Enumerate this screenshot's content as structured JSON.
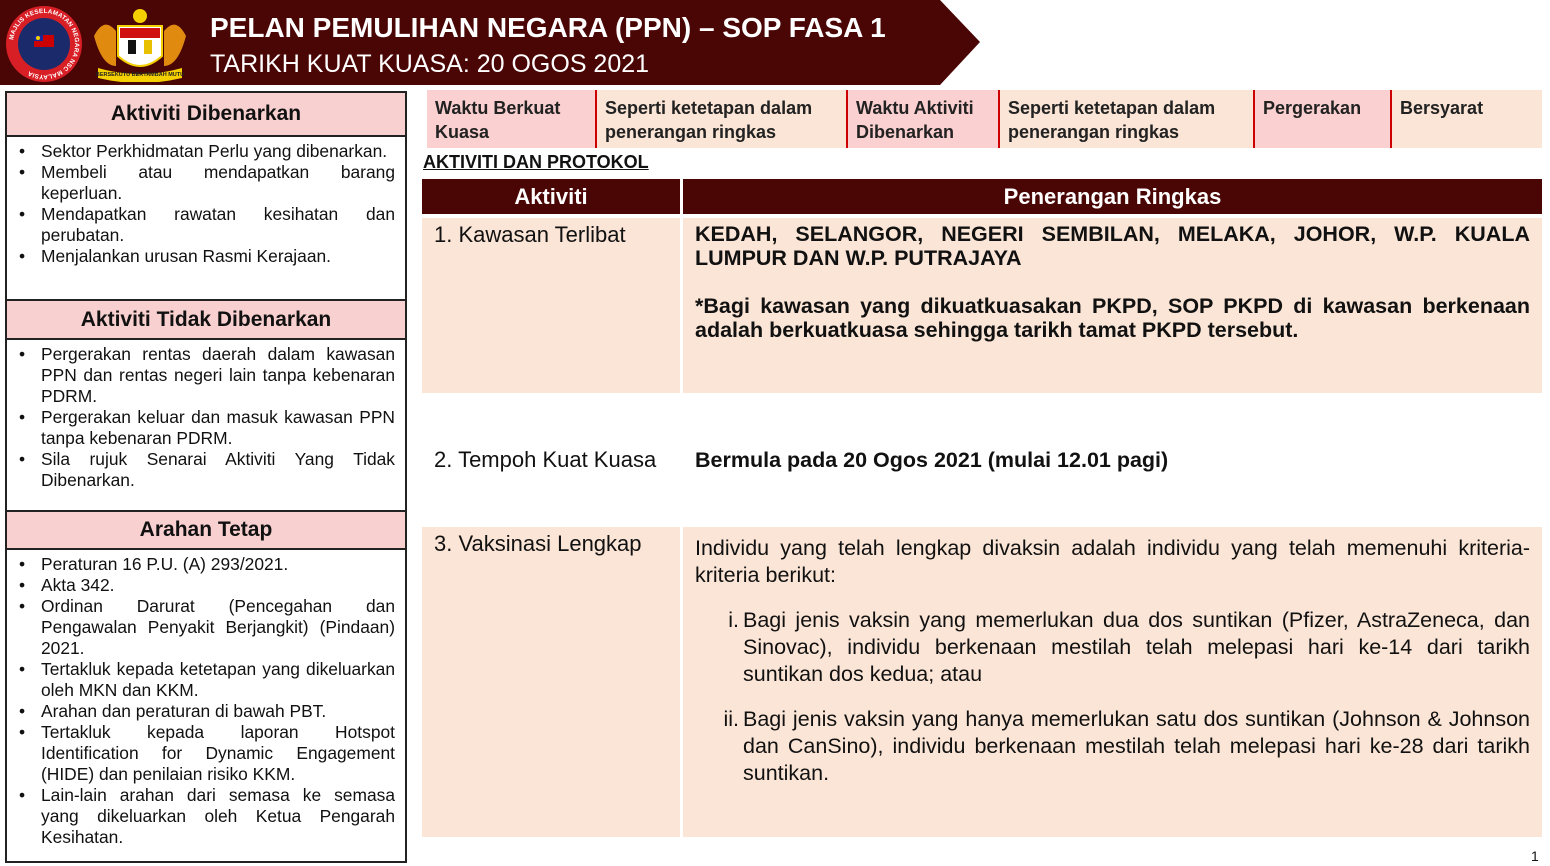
{
  "header": {
    "title": "PELAN PEMULIHAN NEGARA (PPN) – SOP FASA 1",
    "subtitle": "TARIKH KUAT KUASA: 20 OGOS 2021",
    "logo1_text": "MAJLIS KESELAMATAN NEGARA NSC MALAYSIA",
    "logo2_text": "BERSEKUTU BERTAMBAH MUTU"
  },
  "left": {
    "sections": [
      {
        "title": "Aktiviti Dibenarkan",
        "items": [
          "Sektor Perkhidmatan Perlu yang dibenarkan.",
          "Membeli atau mendapatkan barang keperluan.",
          "Mendapatkan rawatan kesihatan dan perubatan.",
          "Menjalankan urusan Rasmi Kerajaan."
        ]
      },
      {
        "title": "Aktiviti Tidak Dibenarkan",
        "items": [
          "Pergerakan rentas daerah dalam kawasan PPN dan rentas negeri lain tanpa kebenaran PDRM.",
          "Pergerakan keluar dan masuk kawasan PPN tanpa kebenaran PDRM.",
          "Sila rujuk Senarai Aktiviti Yang Tidak Dibenarkan."
        ]
      },
      {
        "title": "Arahan Tetap",
        "items": [
          "Peraturan 16 P.U. (A) 293/2021.",
          "Akta 342.",
          "Ordinan Darurat (Pencegahan dan Pengawalan Penyakit Berjangkit) (Pindaan) 2021.",
          "Tertakluk kepada ketetapan yang dikeluarkan oleh MKN dan KKM.",
          "Arahan dan peraturan di bawah PBT.",
          "Tertakluk kepada laporan Hotspot Identification for Dynamic Engagement (HIDE) dan penilaian risiko KKM.",
          "Lain-lain arahan dari semasa ke semasa yang dikeluarkan oleh Ketua Pengarah Kesihatan."
        ]
      }
    ]
  },
  "info": [
    "Waktu Berkuat Kuasa",
    "Seperti ketetapan dalam penerangan ringkas",
    "Waktu Aktiviti Dibenarkan",
    "Seperti ketetapan dalam penerangan ringkas",
    "Pergerakan",
    "Bersyarat"
  ],
  "section_title": "AKTIVITI DAN PROTOKOL",
  "table": {
    "headers": [
      "Aktiviti",
      "Penerangan Ringkas"
    ],
    "rows": [
      {
        "activity": "1. Kawasan Terlibat",
        "p1": "KEDAH, SELANGOR, NEGERI SEMBILAN, MELAKA, JOHOR, W.P. KUALA LUMPUR DAN W.P. PUTRAJAYA",
        "p2": "*Bagi kawasan yang dikuatkuasakan PKPD, SOP PKPD di kawasan berkenaan adalah berkuatkuasa sehingga tarikh tamat PKPD tersebut."
      },
      {
        "activity": "2. Tempoh Kuat Kuasa",
        "p1": "Bermula pada 20 Ogos 2021 (mulai 12.01 pagi)"
      },
      {
        "activity": "3. Vaksinasi Lengkap",
        "p1": "Individu yang telah lengkap divaksin adalah individu yang telah memenuhi kriteria-kriteria berikut:",
        "sub": [
          {
            "n": "i.",
            "t": "Bagi jenis vaksin yang memerlukan dua dos suntikan (Pfizer, AstraZeneca, dan Sinovac), individu berkenaan mestilah telah melepasi hari ke-14 dari tarikh suntikan dos kedua; atau"
          },
          {
            "n": "ii.",
            "t": "Bagi jenis vaksin yang hanya memerlukan satu dos suntikan (Johnson & Johnson dan CanSino), individu berkenaan mestilah telah melepasi hari ke-28 dari tarikh suntikan."
          }
        ]
      }
    ]
  },
  "page_number": "1"
}
